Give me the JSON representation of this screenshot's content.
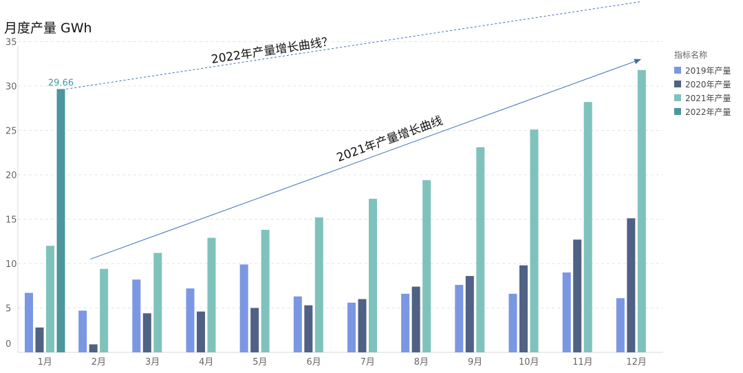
{
  "chart_data": {
    "type": "bar",
    "title": "月度产量 GWh",
    "categories": [
      "1月",
      "2月",
      "3月",
      "4月",
      "5月",
      "6月",
      "7月",
      "8月",
      "9月",
      "10月",
      "11月",
      "12月"
    ],
    "series": [
      {
        "name": "2019年产量",
        "color": "#7b97e3",
        "values": [
          6.7,
          4.7,
          8.2,
          7.2,
          9.9,
          6.3,
          5.6,
          6.6,
          7.6,
          6.6,
          9.0,
          6.1
        ]
      },
      {
        "name": "2020年产量",
        "color": "#4f6185",
        "values": [
          2.8,
          0.9,
          4.4,
          4.6,
          5.0,
          5.3,
          6.0,
          7.4,
          8.6,
          9.8,
          12.7,
          15.1
        ]
      },
      {
        "name": "2021年产量",
        "color": "#7fc2bc",
        "values": [
          12.0,
          9.4,
          11.2,
          12.9,
          13.8,
          15.2,
          17.3,
          19.4,
          23.1,
          25.1,
          28.2,
          31.8
        ]
      },
      {
        "name": "2022年产量",
        "color": "#4d969e",
        "values": [
          29.66,
          null,
          null,
          null,
          null,
          null,
          null,
          null,
          null,
          null,
          null,
          null
        ]
      }
    ],
    "y_ticks": [
      "0",
      "5",
      "10",
      "15",
      "20",
      "25",
      "30",
      "35"
    ],
    "ylim": [
      0,
      35
    ],
    "grid": true,
    "legend": {
      "title": "指标名称",
      "position": "right"
    },
    "data_labels": [
      {
        "series": "2022年产量",
        "category": "1月",
        "text": "29.66"
      }
    ],
    "annotations": [
      {
        "text": "2021年产量增长曲线",
        "style": "solid-arrow",
        "from": {
          "category": "2月",
          "y": 10.5
        },
        "to": {
          "category": "12月",
          "y": 33.0
        }
      },
      {
        "text": "2022年产量增长曲线？",
        "style": "dashed-arrow",
        "from": {
          "category": "1月",
          "y": 29.66
        },
        "to": {
          "category": "12月",
          "y": 39.5
        }
      }
    ]
  }
}
